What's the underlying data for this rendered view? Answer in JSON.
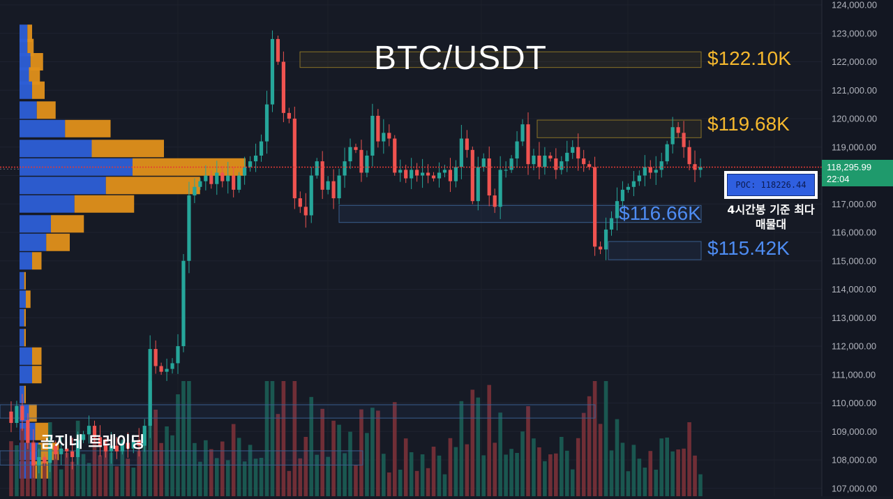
{
  "chart_data": {
    "type": "candlestick",
    "title": "BTC/USDT",
    "ylim": [
      106800,
      124100
    ],
    "y_ticks": [
      "124,000.00",
      "123,000.00",
      "122,000.00",
      "121,000.00",
      "120,000.00",
      "119,000.00",
      "118,000.00",
      "117,000.00",
      "116,000.00",
      "115,000.00",
      "114,000.00",
      "113,000.00",
      "112,000.00",
      "111,000.00",
      "110,000.00",
      "109,000.00",
      "108,000.00",
      "107,000.00"
    ],
    "y_tick_values": [
      124000,
      123000,
      122000,
      121000,
      120000,
      119000,
      118000,
      117000,
      116000,
      115000,
      114000,
      113000,
      112000,
      111000,
      110000,
      109000,
      108000,
      107000
    ],
    "current_price": {
      "label": "118,295.99",
      "value": 118295.99,
      "countdown": "22:04"
    },
    "levels": [
      {
        "label": "$122.10K",
        "value": 122100,
        "low": 121800,
        "high": 122350,
        "color": "#f5b82e"
      },
      {
        "label": "$119.68K",
        "value": 119680,
        "low": 119330,
        "high": 119950,
        "color": "#f5b82e"
      },
      {
        "label": "$116.66K",
        "value": 116660,
        "low": 116350,
        "high": 116950,
        "color": "#4e8cf2"
      },
      {
        "label": "$115.42K",
        "value": 115420,
        "low": 115040,
        "high": 115680,
        "color": "#4e8cf2"
      }
    ],
    "lower_zones": [
      {
        "low": 109470,
        "high": 109940
      },
      {
        "low": 107820,
        "high": 108320
      }
    ],
    "poc": {
      "label": "POC: 118226.44",
      "value": 118226.44,
      "note": "4시간봉 기준 최다 매물대"
    },
    "price_path": [
      109700,
      109300,
      109900,
      109400,
      108600,
      107800,
      108100,
      107900,
      108500,
      108200,
      108400,
      108300,
      108100,
      108700,
      108900,
      109200,
      108800,
      108500,
      108300,
      108500,
      108300,
      108600,
      108400,
      108700,
      108500,
      109200,
      111900,
      111300,
      111100,
      111200,
      111400,
      112000,
      115000,
      117300,
      117600,
      117800,
      118000,
      117700,
      118100,
      117800,
      118000,
      117500,
      118000,
      118300,
      118500,
      118700,
      119200,
      120500,
      122800,
      122000,
      120200,
      120000,
      117200,
      116900,
      116600,
      118000,
      118500,
      117500,
      117800,
      117200,
      118000,
      118500,
      119000,
      118900,
      118100,
      118700,
      120100,
      119200,
      119500,
      119300,
      118100,
      118200,
      117900,
      118200,
      118000,
      118100,
      118000,
      117900,
      118100,
      118200,
      117800,
      118300,
      119300,
      118900,
      117100,
      118300,
      118600,
      117300,
      116900,
      118200,
      118200,
      118600,
      119200,
      119800,
      118400,
      118700,
      118300,
      118700,
      118600,
      118200,
      118500,
      118800,
      119000,
      118600,
      118400,
      118300,
      115500,
      115400,
      116100,
      116500,
      117100,
      117500,
      117600,
      117800,
      118000,
      118300,
      118100,
      118200,
      118500,
      119100,
      119700,
      119500,
      119000,
      118400,
      118200,
      118300
    ],
    "volume_profile": [
      {
        "price": 123000,
        "buy": 0.05,
        "sell": 0.03
      },
      {
        "price": 122500,
        "buy": 0.05,
        "sell": 0.04
      },
      {
        "price": 122000,
        "buy": 0.07,
        "sell": 0.08
      },
      {
        "price": 121500,
        "buy": 0.06,
        "sell": 0.07
      },
      {
        "price": 121000,
        "buy": 0.08,
        "sell": 0.08
      },
      {
        "price": 120300,
        "buy": 0.11,
        "sell": 0.12
      },
      {
        "price": 119650,
        "buy": 0.29,
        "sell": 0.29
      },
      {
        "price": 118950,
        "buy": 0.46,
        "sell": 0.46
      },
      {
        "price": 118300,
        "buy": 0.72,
        "sell": 0.72
      },
      {
        "price": 117650,
        "buy": 0.55,
        "sell": 0.6
      },
      {
        "price": 117000,
        "buy": 0.35,
        "sell": 0.38
      },
      {
        "price": 116300,
        "buy": 0.2,
        "sell": 0.21
      },
      {
        "price": 115650,
        "buy": 0.17,
        "sell": 0.15
      },
      {
        "price": 115000,
        "buy": 0.08,
        "sell": 0.06
      },
      {
        "price": 114300,
        "buy": 0.03,
        "sell": 0.01
      },
      {
        "price": 113650,
        "buy": 0.04,
        "sell": 0.03
      },
      {
        "price": 113000,
        "buy": 0.03,
        "sell": 0.01
      },
      {
        "price": 112300,
        "buy": 0.03,
        "sell": 0.01
      },
      {
        "price": 111650,
        "buy": 0.08,
        "sell": 0.06
      },
      {
        "price": 111000,
        "buy": 0.08,
        "sell": 0.06
      },
      {
        "price": 110300,
        "buy": 0.03,
        "sell": 0.01
      },
      {
        "price": 109650,
        "buy": 0.06,
        "sell": 0.05
      },
      {
        "price": 109000,
        "buy": 0.1,
        "sell": 0.09
      },
      {
        "price": 108300,
        "buy": 0.12,
        "sell": 0.13
      },
      {
        "price": 107650,
        "buy": 0.09,
        "sell": 0.11
      }
    ],
    "colors": {
      "up": "#26a69a",
      "down": "#ef5350",
      "level_gold": "#f5b82e",
      "level_blue": "#4e8cf2",
      "price_line": "#e53935"
    }
  },
  "branding": {
    "watermark": "곰지네 트레이딩"
  }
}
